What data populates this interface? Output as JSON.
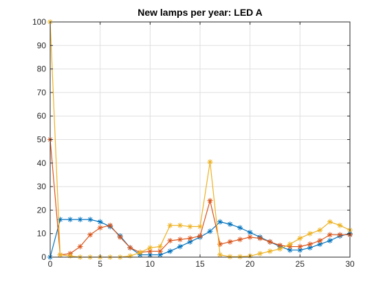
{
  "chart_data": {
    "type": "line",
    "title": "New lamps per year: LED A",
    "xlabel": "",
    "ylabel": "",
    "xlim": [
      0,
      30
    ],
    "ylim": [
      0,
      100
    ],
    "x_ticks": [
      0,
      5,
      10,
      15,
      20,
      25,
      30
    ],
    "y_ticks": [
      0,
      10,
      20,
      30,
      40,
      50,
      60,
      70,
      80,
      90,
      100
    ],
    "grid": true,
    "marker": "asterisk",
    "x": [
      0,
      1,
      2,
      3,
      4,
      5,
      6,
      7,
      8,
      9,
      10,
      11,
      12,
      13,
      14,
      15,
      16,
      17,
      18,
      19,
      20,
      21,
      22,
      23,
      24,
      25,
      26,
      27,
      28,
      29,
      30
    ],
    "series": [
      {
        "color": "#0072BD",
        "values": [
          0,
          16,
          16,
          16,
          16,
          15,
          13,
          9,
          4,
          1,
          1,
          1,
          2.5,
          4.5,
          6.5,
          8.5,
          11,
          15,
          14,
          12.5,
          10.5,
          8.5,
          6.5,
          4.5,
          3,
          3,
          4,
          5.5,
          7,
          9,
          10
        ]
      },
      {
        "color": "#D95319",
        "values": [
          50,
          1,
          1.5,
          4.5,
          9.5,
          12.5,
          13.5,
          8.5,
          4,
          2,
          2.5,
          2.5,
          7,
          7.5,
          8,
          9,
          24,
          5.5,
          6.5,
          7.5,
          8.5,
          8,
          6.5,
          5,
          4.5,
          4.5,
          5.5,
          7,
          9.5,
          9.5,
          9.5
        ]
      },
      {
        "color": "#EDB120",
        "values": [
          100,
          1,
          0.5,
          0,
          0,
          0,
          0,
          0,
          0.5,
          2,
          4,
          4.5,
          13.5,
          13.5,
          13,
          13,
          40.5,
          1,
          0.2,
          0.2,
          0.5,
          1.5,
          2.5,
          3.5,
          5.5,
          8,
          10,
          11.5,
          15,
          13.5,
          11.5
        ]
      }
    ]
  }
}
